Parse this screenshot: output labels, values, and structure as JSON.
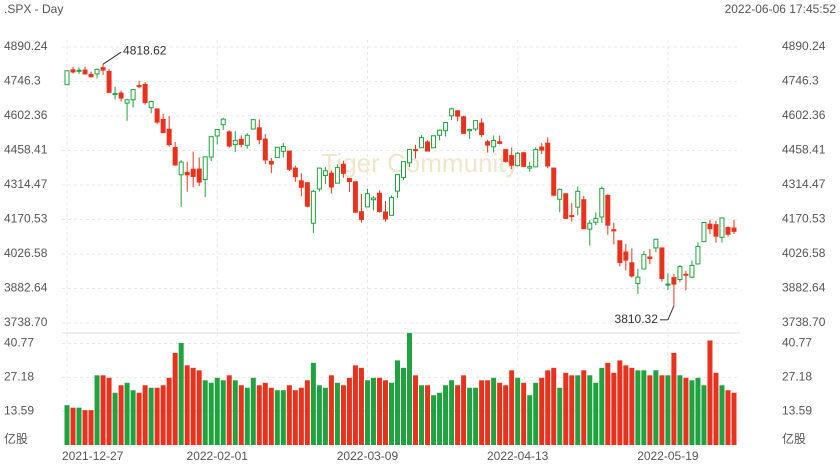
{
  "chart_data": {
    "type": "candlestick",
    "title": ".SPX - Day",
    "timestamp": "2022-06-06 17:45:52",
    "watermark": "Tiger Community",
    "up_color": "#1fa23f",
    "down_color": "#e8321e",
    "categories": [
      "2021-12-27",
      null,
      null,
      null,
      null,
      null,
      null,
      null,
      null,
      null,
      null,
      null,
      null,
      null,
      null,
      null,
      null,
      null,
      null,
      null,
      null,
      null,
      null,
      null,
      null,
      "2022-02-01",
      null,
      null,
      null,
      null,
      null,
      null,
      null,
      null,
      null,
      null,
      null,
      null,
      null,
      null,
      null,
      null,
      null,
      null,
      null,
      null,
      null,
      null,
      null,
      null,
      "2022-03-09",
      null,
      null,
      null,
      null,
      null,
      null,
      null,
      null,
      null,
      null,
      null,
      null,
      null,
      null,
      null,
      null,
      null,
      null,
      null,
      null,
      null,
      null,
      null,
      null,
      "2022-04-13",
      null,
      null,
      null,
      null,
      null,
      null,
      null,
      null,
      null,
      null,
      null,
      null,
      null,
      null,
      null,
      null,
      null,
      null,
      null,
      null,
      null,
      null,
      null,
      null,
      "2022-05-19",
      null,
      null,
      null,
      null,
      null,
      null,
      null,
      null,
      null,
      null,
      null
    ],
    "open": [
      4733,
      4795,
      4789,
      4794,
      4776,
      4778,
      4804,
      4788,
      4693,
      4698,
      4656,
      4670,
      4729,
      4734,
      4637,
      4632,
      4588,
      4547,
      4471,
      4357,
      4367,
      4380,
      4381,
      4337,
      4431,
      4519,
      4566,
      4536,
      4483,
      4505,
      4480,
      4548,
      4553,
      4506,
      4413,
      4429,
      4455,
      4456,
      4385,
      4332,
      4324,
      4155,
      4298,
      4354,
      4364,
      4322,
      4401,
      4342,
      4328,
      4203,
      4223,
      4253,
      4280,
      4202,
      4188,
      4289,
      4346,
      4407,
      4462,
      4470,
      4494,
      4470,
      4522,
      4541,
      4603,
      4624,
      4599,
      4541,
      4548,
      4573,
      4495,
      4474,
      4495,
      4462,
      4437,
      4395,
      4449,
      4385,
      4390,
      4473,
      4489,
      4385,
      4255,
      4278,
      4187,
      4222,
      4253,
      4130,
      4159,
      4181,
      4271,
      4128,
      4082,
      4035,
      3990,
      3904,
      3964,
      4014,
      4052,
      4052,
      3899,
      3928,
      3920,
      3942,
      3930,
      3985,
      4078,
      4151,
      4149,
      4096,
      4137,
      4135
    ],
    "high": [
      4791,
      4807,
      4805,
      4808,
      4787,
      4800,
      4818.62,
      4798,
      4725,
      4708,
      4674,
      4714,
      4749,
      4744,
      4666,
      4632,
      4612,
      4602,
      4494,
      4418,
      4411,
      4454,
      4429,
      4432,
      4516,
      4546,
      4595,
      4543,
      4539,
      4521,
      4531,
      4590,
      4588,
      4527,
      4427,
      4472,
      4490,
      4456,
      4395,
      4363,
      4325,
      4294,
      4385,
      4389,
      4375,
      4401,
      4416,
      4343,
      4328,
      4277,
      4299,
      4268,
      4292,
      4247,
      4271,
      4358,
      4412,
      4465,
      4482,
      4522,
      4501,
      4520,
      4546,
      4575,
      4637,
      4627,
      4604,
      4549,
      4583,
      4593,
      4503,
      4521,
      4521,
      4464,
      4471,
      4453,
      4453,
      4411,
      4471,
      4489,
      4513,
      4386,
      4300,
      4278,
      4240,
      4308,
      4269,
      4169,
      4200,
      4308,
      4276,
      4157,
      4082,
      4068,
      4050,
      3965,
      4039,
      4047,
      4090,
      4053,
      3946,
      3944,
      3981,
      3956,
      3999,
      4076,
      4158,
      4169,
      4166,
      4177,
      4142,
      4169
    ],
    "low": [
      4733,
      4780,
      4778,
      4775,
      4765,
      4759,
      4774,
      4700,
      4671,
      4663,
      4582,
      4638,
      4718,
      4650,
      4614,
      4568,
      4533,
      4474,
      4395,
      4223,
      4287,
      4305,
      4310,
      4265,
      4415,
      4484,
      4545,
      4470,
      4452,
      4471,
      4466,
      4548,
      4484,
      4402,
      4364,
      4429,
      4429,
      4373,
      4328,
      4267,
      4222,
      4115,
      4287,
      4318,
      4279,
      4322,
      4345,
      4285,
      4199,
      4157,
      4223,
      4209,
      4200,
      4162,
      4188,
      4261,
      4335,
      4390,
      4425,
      4469,
      4455,
      4468,
      4501,
      4517,
      4585,
      4581,
      4530,
      4507,
      4539,
      4514,
      4450,
      4450,
      4484,
      4408,
      4381,
      4392,
      4392,
      4370,
      4390,
      4444,
      4384,
      4267,
      4200,
      4175,
      4162,
      4188,
      4132,
      4062,
      4147,
      4156,
      4107,
      4067,
      3975,
      3958,
      3928,
      3859,
      3964,
      3984,
      4034,
      3912,
      3876,
      3810.32,
      3909,
      3875,
      3926,
      3985,
      4078,
      4110,
      4074,
      4074,
      4099,
      4110
    ],
    "close": [
      4791,
      4786,
      4793,
      4778,
      4766,
      4797,
      4794,
      4701,
      4696,
      4677,
      4670,
      4713,
      4726,
      4659,
      4663,
      4577,
      4533,
      4483,
      4398,
      4410,
      4357,
      4350,
      4327,
      4432,
      4516,
      4546,
      4589,
      4477,
      4501,
      4484,
      4522,
      4587,
      4504,
      4419,
      4402,
      4472,
      4475,
      4380,
      4349,
      4305,
      4226,
      4288,
      4385,
      4374,
      4306,
      4387,
      4363,
      4329,
      4201,
      4171,
      4278,
      4260,
      4204,
      4173,
      4262,
      4358,
      4412,
      4463,
      4461,
      4512,
      4456,
      4520,
      4543,
      4575,
      4632,
      4602,
      4530,
      4546,
      4583,
      4525,
      4481,
      4500,
      4488,
      4413,
      4397,
      4447,
      4392,
      4391,
      4463,
      4460,
      4394,
      4272,
      4296,
      4175,
      4183,
      4288,
      4132,
      4155,
      4175,
      4300,
      4147,
      4123,
      3991,
      4001,
      3935,
      3930,
      4024,
      4008,
      4088,
      3924,
      3901,
      3901,
      3974,
      3941,
      3979,
      4058,
      4158,
      4132,
      4101,
      4177,
      4109,
      4121
    ],
    "ylim": [
      3738.7,
      4890.24
    ],
    "yticks": [
      {
        "value": 3738.7,
        "label": "3738.70"
      },
      3882.64,
      4026.58,
      4170.53,
      4314.47,
      4458.41,
      4602.36,
      4746.3,
      4890.24
    ],
    "volume": {
      "unit": "亿股",
      "values": [
        16,
        15,
        15,
        14,
        14,
        28,
        28,
        27,
        21,
        24,
        25,
        22,
        21,
        24,
        23,
        23,
        24,
        27,
        37,
        41,
        32,
        31,
        30,
        26,
        25,
        27,
        26,
        28,
        26,
        24,
        23,
        27,
        24,
        25,
        23,
        22,
        22,
        24,
        22,
        23,
        26,
        33,
        24,
        23,
        28,
        25,
        24,
        27,
        32,
        31,
        26,
        27,
        27,
        26,
        25,
        34,
        31,
        45,
        28,
        24,
        24,
        20,
        21,
        24,
        26,
        24,
        28,
        23,
        23,
        26,
        26,
        27,
        25,
        24,
        30,
        27,
        25,
        20,
        25,
        27,
        30,
        31,
        23,
        29,
        28,
        28,
        30,
        28,
        25,
        31,
        33,
        29,
        34,
        32,
        31,
        30,
        30,
        28,
        30,
        28,
        28,
        37,
        28,
        27,
        26,
        27,
        24,
        42,
        29,
        24,
        22,
        21
      ],
      "ylim": [
        0,
        45
      ],
      "yticks": [
        13.59,
        27.18,
        40.77
      ]
    }
  }
}
